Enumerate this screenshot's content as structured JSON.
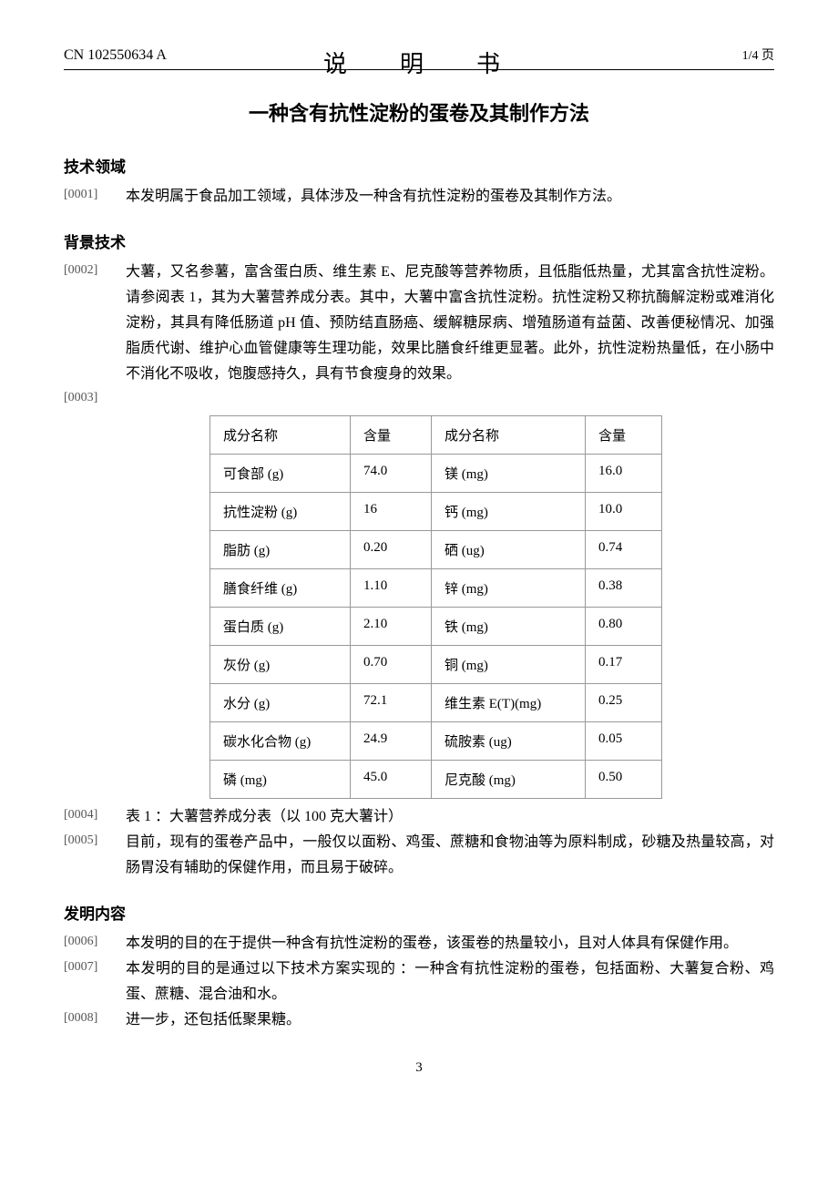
{
  "header": {
    "doc_id": "CN 102550634 A",
    "center": "说　明　书",
    "page_indicator": "1/4 页"
  },
  "title": "一种含有抗性淀粉的蛋卷及其制作方法",
  "sections": {
    "tech_field_heading": "技术领域",
    "background_heading": "背景技术",
    "invention_heading": "发明内容"
  },
  "paragraphs": {
    "p0001_num": "[0001]",
    "p0001": "本发明属于食品加工领域，具体涉及一种含有抗性淀粉的蛋卷及其制作方法。",
    "p0002_num": "[0002]",
    "p0002": "大薯，又名参薯，富含蛋白质、维生素 E、尼克酸等营养物质，且低脂低热量，尤其富含抗性淀粉。请参阅表 1，其为大薯营养成分表。其中，大薯中富含抗性淀粉。抗性淀粉又称抗酶解淀粉或难消化淀粉，其具有降低肠道 pH 值、预防结直肠癌、缓解糖尿病、增殖肠道有益菌、改善便秘情况、加强脂质代谢、维护心血管健康等生理功能，效果比膳食纤维更显著。此外，抗性淀粉热量低，在小肠中不消化不吸收，饱腹感持久，具有节食瘦身的效果。",
    "p0003_num": "[0003]",
    "p0004_num": "[0004]",
    "p0004": "表 1 ：大薯营养成分表（以 100 克大薯计）",
    "p0005_num": "[0005]",
    "p0005": "目前，现有的蛋卷产品中，一般仅以面粉、鸡蛋、蔗糖和食物油等为原料制成，砂糖及热量较高，对肠胃没有辅助的保健作用，而且易于破碎。",
    "p0006_num": "[0006]",
    "p0006": "本发明的目的在于提供一种含有抗性淀粉的蛋卷，该蛋卷的热量较小，且对人体具有保健作用。",
    "p0007_num": "[0007]",
    "p0007": "本发明的目的是通过以下技术方案实现的 ：一种含有抗性淀粉的蛋卷，包括面粉、大薯复合粉、鸡蛋、蔗糖、混合油和水。",
    "p0008_num": "[0008]",
    "p0008": "进一步，还包括低聚果糖。"
  },
  "table": {
    "header": {
      "col1": "成分名称",
      "col2": "含量",
      "col3": "成分名称",
      "col4": "含量"
    },
    "rows": [
      {
        "c1": "可食部 (g)",
        "c2": "74.0",
        "c3": "镁 (mg)",
        "c4": "16.0"
      },
      {
        "c1": "抗性淀粉 (g)",
        "c2": "16",
        "c3": "钙 (mg)",
        "c4": "10.0"
      },
      {
        "c1": "脂肪 (g)",
        "c2": "0.20",
        "c3": "硒 (ug)",
        "c4": "0.74"
      },
      {
        "c1": "膳食纤维 (g)",
        "c2": "1.10",
        "c3": "锌 (mg)",
        "c4": "0.38"
      },
      {
        "c1": "蛋白质 (g)",
        "c2": "2.10",
        "c3": "铁 (mg)",
        "c4": "0.80"
      },
      {
        "c1": "灰份 (g)",
        "c2": "0.70",
        "c3": "铜 (mg)",
        "c4": "0.17"
      },
      {
        "c1": "水分 (g)",
        "c2": "72.1",
        "c3": "维生素 E(T)(mg)",
        "c4": "0.25"
      },
      {
        "c1": "碳水化合物 (g)",
        "c2": "24.9",
        "c3": "硫胺素 (ug)",
        "c4": "0.05"
      },
      {
        "c1": "磷 (mg)",
        "c2": "45.0",
        "c3": "尼克酸 (mg)",
        "c4": "0.50"
      }
    ]
  },
  "footer": {
    "page_num": "3"
  }
}
